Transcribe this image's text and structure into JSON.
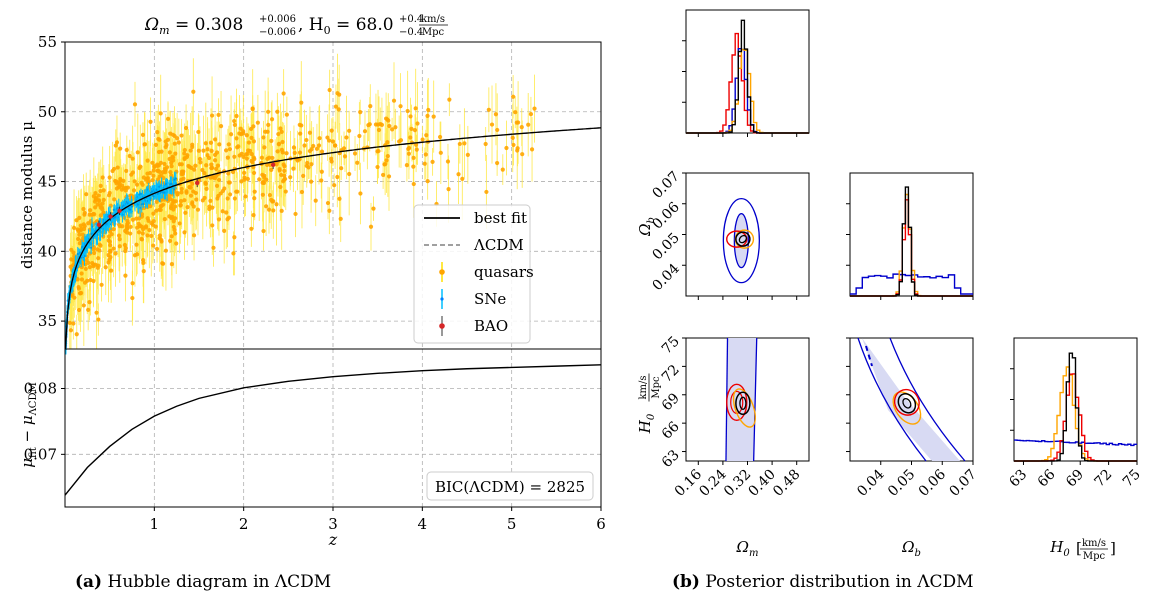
{
  "captions": {
    "a_label": "(a)",
    "a_text": "Hubble diagram in ΛCDM",
    "b_label": "(b)",
    "b_text": "Posterior distribution in ΛCDM"
  },
  "colors": {
    "quasars": "#ffd700",
    "quasar_points": "#ffa500",
    "sne": "#00bfff",
    "bao": "#d62728",
    "best_fit": "#000000",
    "lcdm": "#808080",
    "blue": "#0000cc",
    "orange": "#ffa500",
    "red": "#ee0000",
    "black": "#000000"
  },
  "chart_data": [
    {
      "type": "scatter",
      "title": "Ωm = 0.308+0.006−0.006, H0 = 68.0+0.4−0.4 km/s/Mpc",
      "title_parts": {
        "om_label": "Ω",
        "om_sub": "m",
        "om_val": " = 0.308",
        "om_up": "+0.006",
        "om_dn": "−0.006",
        "h_label": ", H",
        "h_sub": "0",
        "h_val": " = 68.0",
        "h_up": "+0.4",
        "h_dn": "−0.4",
        "unit_num": "km/s",
        "unit_den": "Mpc"
      },
      "xlabel": "z",
      "ylabel": "distance modulus μ",
      "xlim": [
        0,
        6
      ],
      "ylim": [
        33,
        55
      ],
      "yticks": [
        35,
        40,
        45,
        50,
        55
      ],
      "grid": true,
      "legend_position": "center-right",
      "series": [
        {
          "name": "best fit",
          "style": "solid"
        },
        {
          "name": "ΛCDM",
          "style": "dashed"
        },
        {
          "name": "quasars",
          "style": "errorbar"
        },
        {
          "name": "SNe",
          "style": "errorbar"
        },
        {
          "name": "BAO",
          "style": "errorbar"
        }
      ],
      "bao_points": [
        [
          0.38,
          41.9
        ],
        [
          0.51,
          42.5
        ],
        [
          0.61,
          42.9
        ],
        [
          1.48,
          44.9
        ],
        [
          2.33,
          46.2
        ]
      ]
    },
    {
      "type": "line",
      "xlabel": "z",
      "ylabel": "μfit − μΛCDM",
      "ylabel_parts": {
        "mu": "μ",
        "sub1": "fit",
        "minus": " − μ",
        "sub2": "ΛCDM"
      },
      "xlim": [
        0,
        6
      ],
      "ylim": [
        0.062,
        0.086
      ],
      "xticks": [
        1,
        2,
        3,
        4,
        5,
        6
      ],
      "yticks": [
        0.07,
        0.08
      ],
      "grid": true,
      "annotation": "BIC(ΛCDM) = 2825",
      "x": [
        0.0,
        0.25,
        0.5,
        0.75,
        1.0,
        1.25,
        1.5,
        2.0,
        2.5,
        3.0,
        3.5,
        4.0,
        4.5,
        5.0,
        5.5,
        6.0
      ],
      "y": [
        0.0638,
        0.068,
        0.0712,
        0.0738,
        0.0758,
        0.0773,
        0.0785,
        0.0801,
        0.0811,
        0.0818,
        0.0823,
        0.0827,
        0.083,
        0.0832,
        0.0834,
        0.0836
      ]
    },
    {
      "type": "corner",
      "parameters": [
        "Ωm",
        "Ωb",
        "H0"
      ],
      "axis_labels": {
        "om": "Ω",
        "om_sub": "m",
        "ob": "Ω",
        "ob_sub": "b",
        "h0": "H",
        "h0_sub": "0",
        "h0_unit_num": "km/s",
        "h0_unit_den": "Mpc"
      },
      "om_ticks": [
        "0.16",
        "0.24",
        "0.32",
        "0.40",
        "0.48"
      ],
      "ob_ticks": [
        "0.04",
        "0.05",
        "0.06",
        "0.07"
      ],
      "h0_ticks": [
        "63",
        "66",
        "69",
        "72",
        "75"
      ],
      "om_range": [
        0.12,
        0.52
      ],
      "ob_range": [
        0.03,
        0.07
      ],
      "h0_range": [
        62,
        75
      ],
      "contour_sets": [
        {
          "color": "blue",
          "om": 0.3,
          "ob": 0.048,
          "h0": 68.0
        },
        {
          "color": "orange",
          "om": 0.31,
          "ob": 0.0485,
          "h0": 67.6
        },
        {
          "color": "red",
          "om": 0.285,
          "ob": 0.0485,
          "h0": 68.2
        },
        {
          "color": "black",
          "om": 0.305,
          "ob": 0.0485,
          "h0": 68.1
        }
      ]
    }
  ]
}
